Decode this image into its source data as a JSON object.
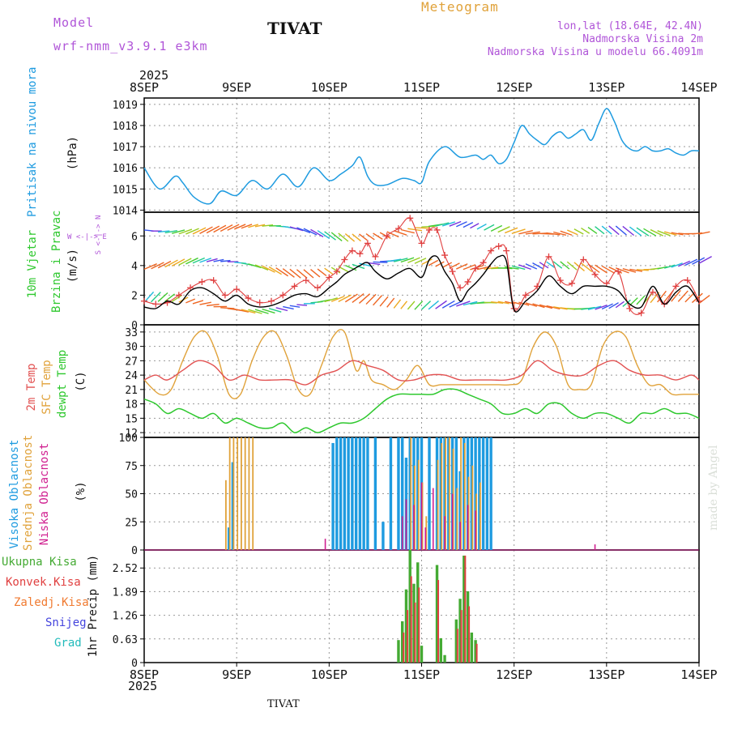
{
  "header": {
    "model_label": "Model",
    "model_name": "wrf-nmm_v3.9.1 e3km",
    "title": "TIVAT",
    "meteogram": "Meteogram",
    "location_line": "lon,lat (18.64E, 42.4N)",
    "elevation_line": "Nadmorska Visina 2m",
    "model_elevation_line": "Nadmorska Visina u modelu 66.4091m"
  },
  "footer": {
    "station": "TIVAT"
  },
  "watermark": "made by Angel",
  "time_axis": {
    "year": "2025",
    "labels": [
      "8SEP",
      "9SEP",
      "10SEP",
      "11SEP",
      "12SEP",
      "13SEP",
      "14SEP"
    ]
  },
  "panels": {
    "pressure": {
      "label": "Pritisak na nivou mora",
      "unit": "(hPa)"
    },
    "wind": {
      "label1": "10m Vjetar",
      "label2": "Brzina i Pravac",
      "unit": "(m/s)",
      "compass": "W <-|-> E",
      "compass_vertical": "S <-|-> N"
    },
    "temp": {
      "label_2m": "2m Temp",
      "label_sfc": "SFC Temp",
      "label_dewpt": "dewpt Temp",
      "unit": "(C)"
    },
    "cloud": {
      "label_high": "Visoka Oblacnost",
      "label_mid": "Srednja Oblacnost",
      "label_low": "Niska Oblacnost",
      "unit": "(%)"
    },
    "precip": {
      "unit_label": "1hr Precip (mm)",
      "legend": [
        "Ukupna Kisa",
        "Konvek.Kisa",
        "Zaledj.Kisa",
        "Snijeg",
        "Grad"
      ]
    }
  },
  "colors": {
    "pressure": "#1e9be0",
    "wind_speed": "#000000",
    "gust": "#e04040",
    "temp_2m": "#e25252",
    "temp_sfc": "#e0a23a",
    "dewpt": "#2ec82e",
    "cloud_high": "#1e9be0",
    "cloud_mid": "#e0a23a",
    "cloud_low": "#d02090",
    "precip_total": "#44aa33",
    "precip_conv": "#e04040",
    "freezing": "#f07a30",
    "snow": "#4444dd",
    "hail": "#22bbbb",
    "header_purple": "#b055d8",
    "meteogram": "#e0a23a"
  },
  "chart_data": [
    {
      "type": "line",
      "title": "Pritisak na nivou mora",
      "ylabel": "(hPa)",
      "x_unit": "hours since 8SEP 00UTC",
      "ylim": [
        1013.9,
        1019.3
      ],
      "yticks": [
        1014,
        1015,
        1016,
        1017,
        1018,
        1019
      ],
      "series": [
        {
          "name": "pressure",
          "x": [
            0,
            4,
            8,
            10,
            13,
            17,
            20,
            24,
            28,
            32,
            36,
            40,
            44,
            48,
            51,
            54,
            56,
            58,
            60,
            63,
            67,
            70,
            72,
            74,
            78,
            82,
            86,
            88,
            90,
            92,
            94,
            96,
            98,
            100,
            102,
            104,
            106,
            108,
            110,
            112,
            114,
            116,
            118,
            120,
            122,
            124,
            126,
            128,
            130,
            132,
            134,
            136,
            138,
            140,
            142,
            144
          ],
          "values": [
            1016.0,
            1015.0,
            1015.6,
            1015.3,
            1014.6,
            1014.3,
            1014.9,
            1014.7,
            1015.4,
            1015.0,
            1015.7,
            1015.1,
            1016.0,
            1015.4,
            1015.7,
            1016.1,
            1016.5,
            1015.6,
            1015.2,
            1015.2,
            1015.5,
            1015.4,
            1015.3,
            1016.3,
            1017.0,
            1016.5,
            1016.6,
            1016.4,
            1016.6,
            1016.2,
            1016.4,
            1017.2,
            1018.0,
            1017.6,
            1017.3,
            1017.1,
            1017.5,
            1017.7,
            1017.4,
            1017.6,
            1017.8,
            1017.3,
            1018.1,
            1018.8,
            1018.2,
            1017.3,
            1016.9,
            1016.8,
            1017.0,
            1016.8,
            1016.8,
            1016.9,
            1016.7,
            1016.6,
            1016.8,
            1016.8
          ]
        }
      ]
    },
    {
      "type": "line",
      "title": "10m Vjetar Brzina i Pravac",
      "ylabel": "(m/s)",
      "ylim": [
        0,
        7.6
      ],
      "yticks": [
        0,
        2,
        4,
        6
      ],
      "series": [
        {
          "name": "wind speed",
          "x": [
            0,
            3,
            6,
            9,
            12,
            15,
            18,
            21,
            24,
            27,
            30,
            33,
            36,
            39,
            42,
            45,
            48,
            50,
            52,
            54,
            56,
            58,
            60,
            63,
            66,
            69,
            72,
            74,
            76,
            78,
            80,
            82,
            84,
            86,
            88,
            90,
            92,
            94,
            96,
            99,
            102,
            105,
            108,
            111,
            114,
            117,
            120,
            123,
            126,
            129,
            132,
            135,
            138,
            141,
            144
          ],
          "values": [
            1.2,
            1.1,
            1.6,
            1.4,
            2.3,
            2.5,
            2.1,
            1.6,
            2.0,
            1.4,
            1.2,
            1.3,
            1.6,
            2.0,
            2.1,
            1.9,
            2.5,
            2.9,
            3.4,
            3.7,
            4.0,
            4.2,
            3.6,
            3.1,
            3.5,
            3.8,
            3.2,
            4.4,
            4.6,
            3.6,
            2.8,
            1.6,
            2.3,
            2.8,
            3.4,
            4.1,
            4.6,
            4.3,
            1.0,
            1.6,
            2.3,
            3.3,
            2.6,
            2.1,
            2.6,
            2.6,
            2.6,
            2.3,
            1.4,
            1.2,
            2.6,
            1.4,
            2.2,
            2.6,
            1.5
          ]
        },
        {
          "name": "wind gust",
          "x": [
            0,
            3,
            6,
            9,
            12,
            15,
            18,
            21,
            24,
            27,
            30,
            33,
            36,
            39,
            42,
            45,
            48,
            50,
            52,
            54,
            56,
            58,
            60,
            63,
            66,
            69,
            72,
            74,
            76,
            78,
            80,
            82,
            84,
            86,
            88,
            90,
            92,
            94,
            96,
            99,
            102,
            105,
            108,
            111,
            114,
            117,
            120,
            123,
            126,
            129,
            132,
            135,
            138,
            141,
            144
          ],
          "values": [
            1.6,
            1.4,
            1.5,
            2.0,
            2.5,
            2.9,
            3.0,
            2.0,
            2.4,
            1.8,
            1.5,
            1.6,
            2.0,
            2.6,
            3.0,
            2.5,
            3.2,
            3.6,
            4.4,
            5.0,
            4.8,
            5.5,
            4.6,
            6.0,
            6.5,
            7.2,
            5.5,
            6.4,
            6.4,
            4.7,
            3.6,
            2.5,
            2.9,
            3.8,
            4.2,
            5.0,
            5.3,
            5.0,
            1.1,
            2.0,
            2.6,
            4.6,
            3.0,
            2.8,
            4.4,
            3.4,
            2.8,
            3.6,
            1.1,
            0.8,
            2.2,
            1.4,
            2.6,
            3.0,
            1.6
          ]
        }
      ]
    },
    {
      "type": "line",
      "title": "Temperature",
      "ylabel": "(C)",
      "ylim": [
        11,
        34.5
      ],
      "yticks": [
        12,
        15,
        18,
        21,
        24,
        27,
        30,
        33
      ],
      "series": [
        {
          "name": "2m Temp",
          "x": [
            0,
            3,
            6,
            10,
            14,
            18,
            22,
            26,
            30,
            34,
            38,
            42,
            46,
            50,
            54,
            58,
            62,
            66,
            70,
            74,
            78,
            82,
            86,
            90,
            94,
            98,
            102,
            106,
            110,
            114,
            118,
            122,
            126,
            130,
            134,
            138,
            142,
            144
          ],
          "values": [
            23,
            24,
            23,
            25,
            27,
            26,
            23,
            24,
            23,
            23,
            23,
            22,
            24,
            25,
            27,
            26,
            25,
            23,
            23,
            24,
            24,
            23,
            23,
            23,
            23,
            24,
            27,
            25,
            24,
            24,
            26,
            27,
            25,
            24,
            24,
            23,
            24,
            23
          ]
        },
        {
          "name": "SFC Temp",
          "x": [
            0,
            4,
            7,
            10,
            13,
            16,
            19,
            22,
            25,
            28,
            31,
            34,
            37,
            40,
            43,
            46,
            49,
            52,
            55,
            57,
            59,
            62,
            65,
            68,
            71,
            74,
            77,
            80,
            83,
            86,
            89,
            92,
            95,
            98,
            101,
            104,
            107,
            110,
            113,
            116,
            119,
            122,
            125,
            128,
            131,
            134,
            137,
            140,
            144
          ],
          "values": [
            23,
            20,
            21,
            27,
            32,
            33,
            28,
            20,
            20,
            27,
            32,
            33,
            28,
            21,
            20,
            26,
            32,
            33,
            25,
            27,
            23,
            22,
            21,
            23,
            26,
            22,
            22,
            22,
            22,
            22,
            22,
            22,
            22,
            23,
            30,
            33,
            30,
            22,
            21,
            22,
            30,
            33,
            32,
            26,
            22,
            22,
            20,
            20,
            20
          ]
        },
        {
          "name": "dewpt Temp",
          "x": [
            0,
            3,
            6,
            9,
            12,
            15,
            18,
            21,
            24,
            27,
            30,
            33,
            36,
            39,
            42,
            45,
            48,
            51,
            54,
            57,
            60,
            63,
            66,
            69,
            72,
            75,
            78,
            81,
            84,
            87,
            90,
            93,
            96,
            99,
            102,
            105,
            108,
            111,
            114,
            117,
            120,
            123,
            126,
            129,
            132,
            135,
            138,
            141,
            144
          ],
          "values": [
            19,
            18,
            16,
            17,
            16,
            15,
            16,
            14,
            15,
            14,
            13,
            13,
            14,
            12,
            13,
            12,
            13,
            14,
            14,
            15,
            17,
            19,
            20,
            20,
            20,
            20,
            21,
            21,
            20,
            19,
            18,
            16,
            16,
            17,
            16,
            18,
            18,
            16,
            15,
            16,
            16,
            15,
            14,
            16,
            16,
            17,
            16,
            16,
            15
          ]
        }
      ]
    },
    {
      "type": "bar",
      "title": "Oblacnost",
      "ylabel": "(%)",
      "ylim": [
        0,
        100
      ],
      "yticks": [
        0,
        25,
        50,
        75,
        100
      ],
      "series": [
        {
          "name": "Visoka Oblacnost",
          "x": [
            22,
            23,
            49,
            50,
            51,
            52,
            53,
            54,
            55,
            56,
            57,
            58,
            60,
            62,
            64,
            66,
            67,
            68,
            69,
            70,
            71,
            72,
            74,
            76,
            77,
            78,
            79,
            80,
            81,
            82,
            83,
            84,
            85,
            86,
            87,
            88,
            89,
            90
          ],
          "values": [
            20,
            78,
            95,
            100,
            100,
            100,
            100,
            100,
            100,
            100,
            100,
            100,
            100,
            25,
            100,
            100,
            100,
            82,
            100,
            100,
            100,
            100,
            100,
            100,
            100,
            100,
            100,
            100,
            100,
            70,
            100,
            100,
            100,
            100,
            100,
            100,
            100,
            100
          ]
        },
        {
          "name": "Srednja Oblacnost",
          "x": [
            21,
            22,
            23,
            24,
            25,
            26,
            27,
            28,
            69,
            70,
            71,
            72,
            73,
            76,
            77,
            78,
            79,
            80,
            81,
            82,
            83,
            84,
            85,
            86,
            87
          ],
          "values": [
            62,
            100,
            100,
            100,
            100,
            100,
            100,
            100,
            100,
            75,
            80,
            60,
            30,
            80,
            95,
            100,
            100,
            90,
            55,
            100,
            95,
            65,
            75,
            50,
            60
          ]
        },
        {
          "name": "Niska Oblacnost",
          "x": [
            47,
            67,
            68,
            70,
            72,
            73,
            75,
            78,
            80,
            82,
            84,
            86,
            117
          ],
          "values": [
            10,
            30,
            45,
            40,
            60,
            20,
            55,
            30,
            50,
            25,
            40,
            35,
            5
          ]
        }
      ]
    },
    {
      "type": "bar",
      "title": "1hr Precip",
      "ylabel": "1hr Precip (mm)",
      "ylim": [
        0,
        3.0
      ],
      "yticks": [
        0,
        0.63,
        1.26,
        1.89,
        2.52
      ],
      "series": [
        {
          "name": "Ukupna Kisa",
          "x": [
            66,
            67,
            68,
            69,
            70,
            71,
            72,
            76,
            77,
            78,
            81,
            82,
            83,
            84,
            85,
            86
          ],
          "values": [
            0.6,
            1.1,
            1.95,
            3.0,
            2.1,
            2.67,
            0.45,
            2.6,
            0.65,
            0.2,
            1.15,
            1.7,
            2.85,
            1.9,
            0.8,
            0.6
          ]
        },
        {
          "name": "Konvek.Kisa",
          "x": [
            67,
            68,
            69,
            70,
            71,
            76,
            81,
            82,
            83,
            84,
            86
          ],
          "values": [
            0.8,
            1.4,
            2.3,
            1.6,
            2.0,
            2.2,
            0.9,
            1.4,
            2.85,
            1.5,
            0.5
          ]
        }
      ]
    }
  ]
}
